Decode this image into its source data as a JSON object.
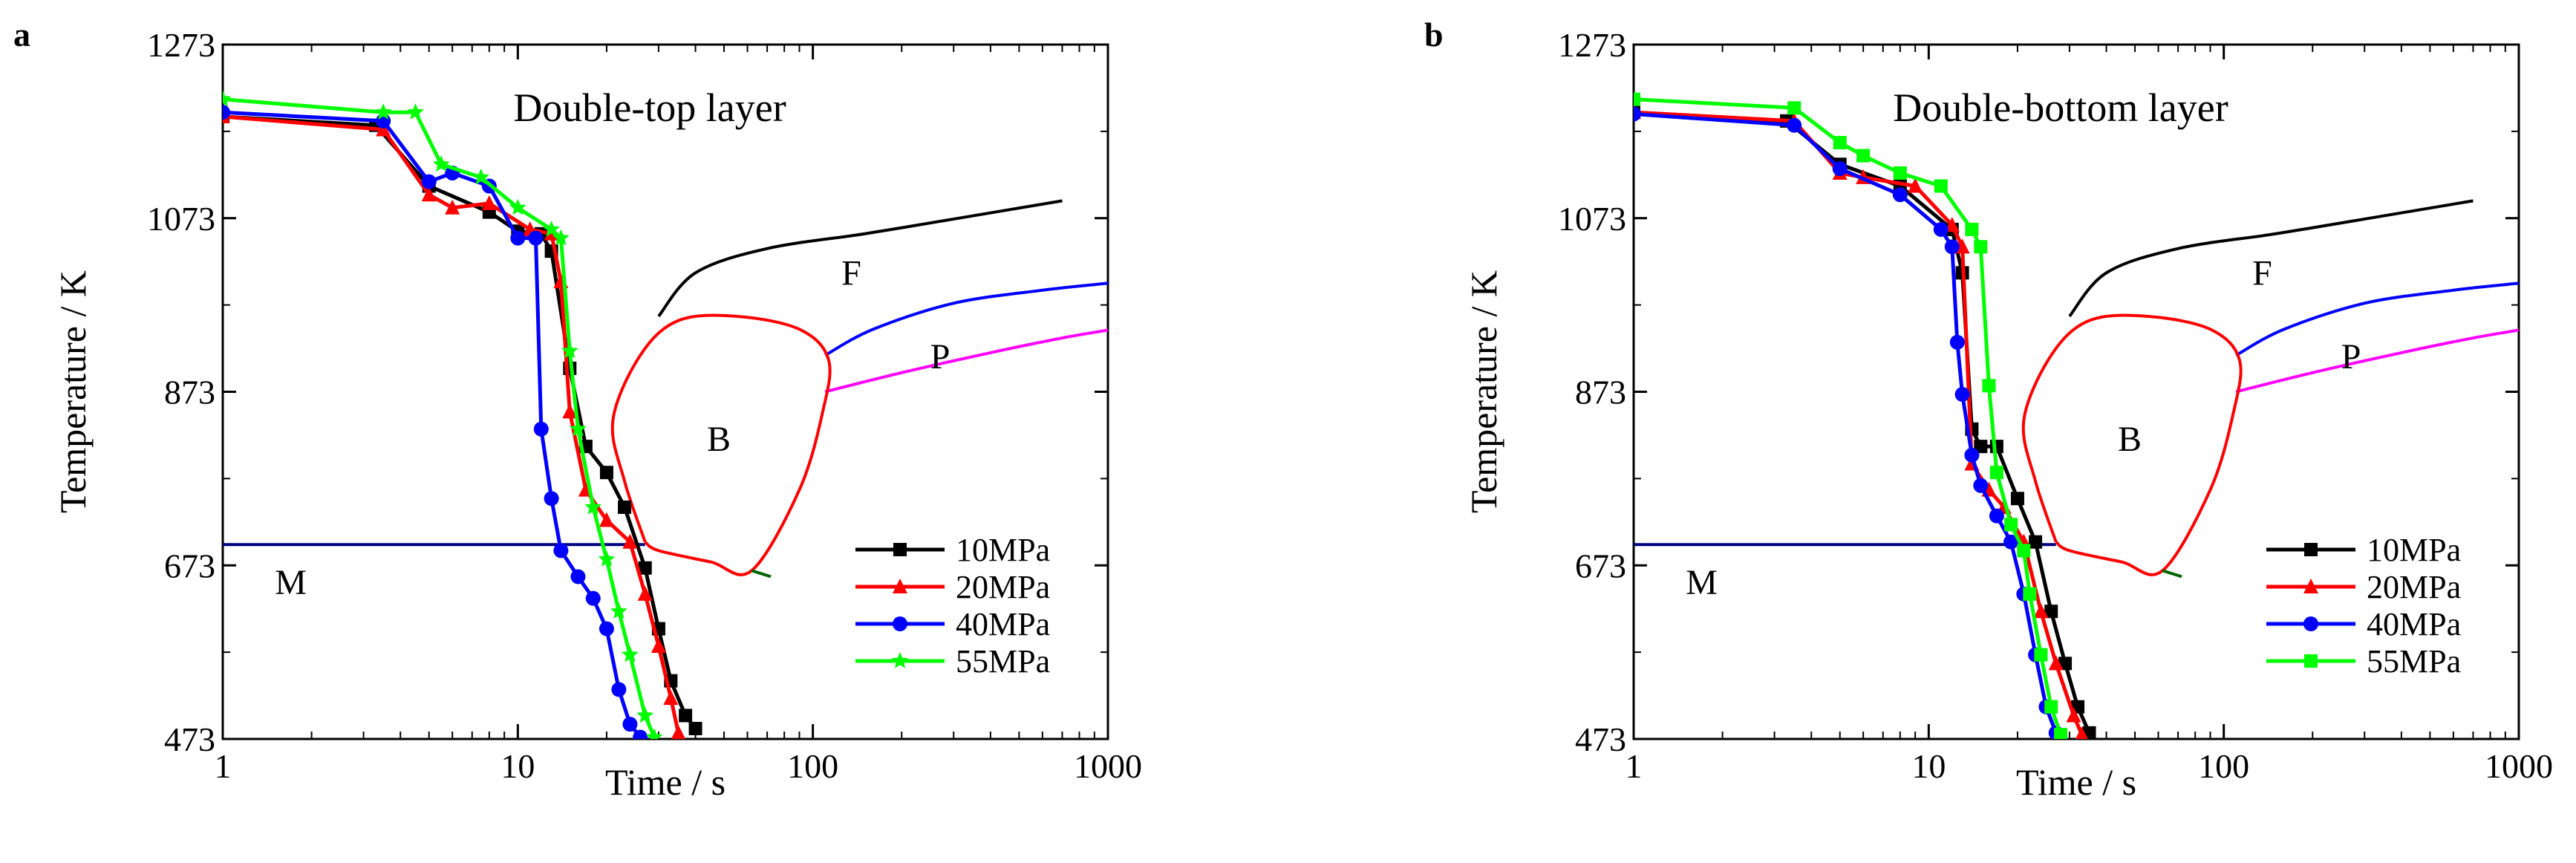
{
  "figure": {
    "panels": [
      "a",
      "b"
    ]
  },
  "colors": {
    "10MPa": "#000000",
    "20MPa": "#ff0000",
    "40MPa": "#0000ff",
    "55MPa": "#00ff00",
    "ferrite_curve": "#000000",
    "pearlite_start": "#0000ff",
    "pearlite_curve": "#ff00ff",
    "bainite_curve": "#ff0000",
    "martensite_line": "#000080",
    "bainite_tail": "#006400"
  },
  "chart_data": [
    {
      "panel": "a",
      "type": "line",
      "title": "Double-top layer",
      "xlabel": "Time / s",
      "ylabel": "Temperature / K",
      "xscale": "log",
      "xlim": [
        1,
        1000
      ],
      "ylim": [
        473,
        1273
      ],
      "xticks": [
        1,
        10,
        100,
        1000
      ],
      "xtick_labels": [
        "1",
        "10",
        "100",
        "1000"
      ],
      "yticks": [
        473,
        673,
        873,
        1073,
        1273
      ],
      "ytick_labels": [
        "473",
        "673",
        "873",
        "1073",
        "1273"
      ],
      "annotations": [
        "M",
        "B",
        "F",
        "P"
      ],
      "legend": {
        "position": "bottom-right",
        "entries": [
          "10MPa",
          "20MPa",
          "40MPa",
          "55MPa"
        ]
      },
      "phase_curves": {
        "ferrite": [
          [
            30,
            960
          ],
          [
            40,
            1010
          ],
          [
            70,
            1038
          ],
          [
            150,
            1055
          ],
          [
            300,
            1072
          ],
          [
            700,
            1093
          ]
        ],
        "pearlite_start": [
          [
            110,
            915
          ],
          [
            160,
            945
          ],
          [
            300,
            975
          ],
          [
            600,
            990
          ],
          [
            1000,
            998
          ]
        ],
        "pearlite": [
          [
            110,
            873
          ],
          [
            200,
            895
          ],
          [
            400,
            918
          ],
          [
            700,
            935
          ],
          [
            1000,
            944
          ]
        ],
        "bainite": [
          [
            27,
            700
          ],
          [
            23,
            770
          ],
          [
            21,
            840
          ],
          [
            26,
            915
          ],
          [
            35,
            955
          ],
          [
            55,
            960
          ],
          [
            90,
            945
          ],
          [
            113,
            910
          ],
          [
            108,
            850
          ],
          [
            90,
            760
          ],
          [
            62,
            667
          ],
          [
            45,
            677
          ],
          [
            30,
            690
          ],
          [
            27,
            700
          ]
        ],
        "bainite_tail": [
          [
            62,
            667
          ],
          [
            72,
            660
          ]
        ],
        "martensite": [
          [
            1,
            697
          ],
          [
            27,
            697
          ]
        ]
      },
      "series": [
        {
          "name": "10MPa",
          "marker": "square",
          "points": [
            [
              1,
              1190
            ],
            [
              3.3,
              1180
            ],
            [
              5,
              1110
            ],
            [
              8,
              1080
            ],
            [
              10,
              1058
            ],
            [
              12,
              1055
            ],
            [
              13,
              1035
            ],
            [
              15,
              900
            ],
            [
              17,
              810
            ],
            [
              20,
              780
            ],
            [
              23,
              740
            ],
            [
              27,
              670
            ],
            [
              30,
              600
            ],
            [
              33,
              540
            ],
            [
              37,
              500
            ],
            [
              40,
              485
            ]
          ]
        },
        {
          "name": "20MPa",
          "marker": "triangle",
          "points": [
            [
              1,
              1190
            ],
            [
              3.5,
              1175
            ],
            [
              5,
              1100
            ],
            [
              6,
              1085
            ],
            [
              8,
              1090
            ],
            [
              11,
              1060
            ],
            [
              13,
              1055
            ],
            [
              14,
              1000
            ],
            [
              15,
              850
            ],
            [
              17,
              760
            ],
            [
              20,
              725
            ],
            [
              24,
              700
            ],
            [
              27,
              640
            ],
            [
              30,
              580
            ],
            [
              33,
              520
            ],
            [
              35,
              480
            ]
          ]
        },
        {
          "name": "40MPa",
          "marker": "circle",
          "points": [
            [
              1,
              1195
            ],
            [
              3.5,
              1185
            ],
            [
              5,
              1115
            ],
            [
              6,
              1125
            ],
            [
              8,
              1110
            ],
            [
              10,
              1050
            ],
            [
              11.5,
              1050
            ],
            [
              12,
              830
            ],
            [
              13,
              750
            ],
            [
              14,
              690
            ],
            [
              16,
              660
            ],
            [
              18,
              635
            ],
            [
              20,
              600
            ],
            [
              22,
              530
            ],
            [
              24,
              490
            ],
            [
              26,
              475
            ]
          ]
        },
        {
          "name": "55MPa",
          "marker": "star",
          "points": [
            [
              1,
              1210
            ],
            [
              3.5,
              1195
            ],
            [
              4.5,
              1195
            ],
            [
              5.5,
              1135
            ],
            [
              7.5,
              1120
            ],
            [
              10,
              1085
            ],
            [
              13,
              1060
            ],
            [
              14,
              1050
            ],
            [
              15,
              920
            ],
            [
              16,
              830
            ],
            [
              18,
              740
            ],
            [
              20,
              680
            ],
            [
              22,
              620
            ],
            [
              24,
              570
            ],
            [
              27,
              500
            ],
            [
              29,
              475
            ]
          ]
        }
      ]
    },
    {
      "panel": "b",
      "type": "line",
      "title": "Double-bottom layer",
      "xlabel": "Time / s",
      "ylabel": "Temperature / K",
      "xscale": "log",
      "xlim": [
        1,
        1000
      ],
      "ylim": [
        473,
        1273
      ],
      "xticks": [
        1,
        10,
        100,
        1000
      ],
      "xtick_labels": [
        "1",
        "10",
        "100",
        "1000"
      ],
      "yticks": [
        473,
        673,
        873,
        1073,
        1273
      ],
      "ytick_labels": [
        "473",
        "673",
        "873",
        "1073",
        "1273"
      ],
      "annotations": [
        "M",
        "B",
        "F",
        "P"
      ],
      "legend": {
        "position": "bottom-right",
        "entries": [
          "10MPa",
          "20MPa",
          "40MPa",
          "55MPa"
        ]
      },
      "phase_curves": {
        "ferrite": [
          [
            30,
            960
          ],
          [
            40,
            1010
          ],
          [
            70,
            1038
          ],
          [
            150,
            1055
          ],
          [
            300,
            1072
          ],
          [
            700,
            1093
          ]
        ],
        "pearlite_start": [
          [
            110,
            915
          ],
          [
            160,
            945
          ],
          [
            300,
            975
          ],
          [
            600,
            990
          ],
          [
            1000,
            998
          ]
        ],
        "pearlite": [
          [
            110,
            873
          ],
          [
            200,
            895
          ],
          [
            400,
            918
          ],
          [
            700,
            935
          ],
          [
            1000,
            944
          ]
        ],
        "bainite": [
          [
            27,
            700
          ],
          [
            23,
            770
          ],
          [
            21,
            840
          ],
          [
            26,
            915
          ],
          [
            35,
            955
          ],
          [
            55,
            960
          ],
          [
            90,
            945
          ],
          [
            113,
            910
          ],
          [
            108,
            850
          ],
          [
            90,
            760
          ],
          [
            62,
            667
          ],
          [
            45,
            677
          ],
          [
            30,
            690
          ],
          [
            27,
            700
          ]
        ],
        "bainite_tail": [
          [
            62,
            667
          ],
          [
            72,
            660
          ]
        ],
        "martensite": [
          [
            1,
            697
          ],
          [
            27,
            697
          ]
        ]
      },
      "series": [
        {
          "name": "10MPa",
          "marker": "square",
          "points": [
            [
              1,
              1195
            ],
            [
              3.3,
              1185
            ],
            [
              5,
              1135
            ],
            [
              8,
              1110
            ],
            [
              12,
              1060
            ],
            [
              13,
              1010
            ],
            [
              14,
              830
            ],
            [
              15,
              810
            ],
            [
              17,
              810
            ],
            [
              20,
              750
            ],
            [
              23,
              700
            ],
            [
              26,
              620
            ],
            [
              29,
              560
            ],
            [
              32,
              510
            ],
            [
              35,
              480
            ]
          ]
        },
        {
          "name": "20MPa",
          "marker": "triangle",
          "points": [
            [
              1,
              1195
            ],
            [
              3.5,
              1185
            ],
            [
              5,
              1125
            ],
            [
              6,
              1120
            ],
            [
              9,
              1110
            ],
            [
              12,
              1065
            ],
            [
              13,
              1040
            ],
            [
              14,
              790
            ],
            [
              16,
              760
            ],
            [
              18,
              740
            ],
            [
              21,
              700
            ],
            [
              24,
              620
            ],
            [
              27,
              560
            ],
            [
              31,
              500
            ],
            [
              33,
              478
            ]
          ]
        },
        {
          "name": "40MPa",
          "marker": "circle",
          "points": [
            [
              1,
              1193
            ],
            [
              3.5,
              1180
            ],
            [
              5,
              1130
            ],
            [
              8,
              1100
            ],
            [
              11,
              1060
            ],
            [
              12,
              1040
            ],
            [
              12.5,
              930
            ],
            [
              13,
              870
            ],
            [
              14,
              800
            ],
            [
              15,
              765
            ],
            [
              17,
              730
            ],
            [
              19,
              700
            ],
            [
              21,
              640
            ],
            [
              23,
              570
            ],
            [
              25,
              510
            ],
            [
              27,
              480
            ]
          ]
        },
        {
          "name": "55MPa",
          "marker": "square",
          "points": [
            [
              1,
              1210
            ],
            [
              3.5,
              1200
            ],
            [
              5,
              1160
            ],
            [
              6,
              1145
            ],
            [
              8,
              1125
            ],
            [
              11,
              1110
            ],
            [
              14,
              1060
            ],
            [
              15,
              1040
            ],
            [
              16,
              880
            ],
            [
              17,
              780
            ],
            [
              19,
              720
            ],
            [
              21,
              690
            ],
            [
              22,
              640
            ],
            [
              24,
              570
            ],
            [
              26,
              510
            ],
            [
              28,
              478
            ]
          ]
        }
      ]
    }
  ]
}
